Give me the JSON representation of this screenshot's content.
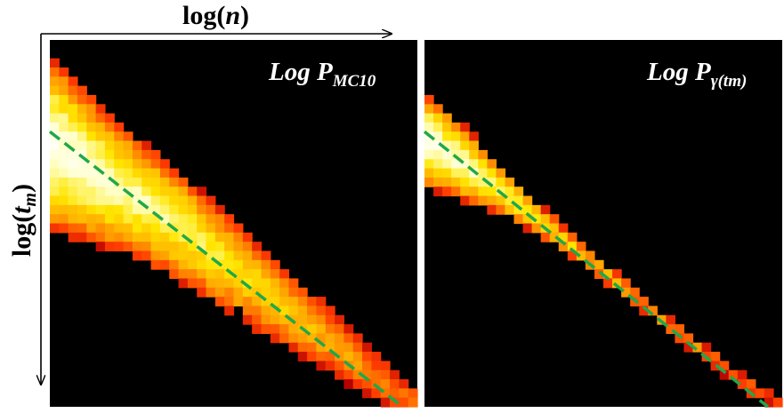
{
  "chart_data": {
    "type": "heatmap",
    "axes": {
      "x_label": "log(n)",
      "y_label": "log(t_m)",
      "x_label_parts": {
        "base": "log(",
        "var": "n",
        "close": ")"
      },
      "y_label_parts": {
        "base": "log(",
        "var": "t",
        "sub": "m",
        "close": ")"
      }
    },
    "grid": false,
    "colormap": [
      "#000000",
      "#b40000",
      "#ff3c00",
      "#ffa000",
      "#ffe600",
      "#ffffc8",
      "#ffffff"
    ],
    "panels": [
      {
        "label_main": "Log P",
        "label_sub": "MC10",
        "grid_size": 40,
        "fit_line": {
          "color": "#1fa84a",
          "style": "dashed",
          "from": [
            0.0,
            0.25
          ],
          "to": [
            0.96,
            1.0
          ]
        },
        "band": {
          "centers": [
            [
              0.0,
              0.28
            ],
            [
              0.15,
              0.38
            ],
            [
              0.3,
              0.47
            ],
            [
              0.45,
              0.58
            ],
            [
              0.6,
              0.7
            ],
            [
              0.75,
              0.81
            ],
            [
              0.9,
              0.93
            ],
            [
              1.0,
              0.99
            ]
          ],
          "half_widths": [
            [
              0.0,
              0.24
            ],
            [
              0.2,
              0.17
            ],
            [
              0.5,
              0.13
            ],
            [
              0.8,
              0.08
            ],
            [
              1.0,
              0.04
            ]
          ],
          "peak": [
            [
              0.0,
              0.95
            ],
            [
              0.4,
              0.75
            ],
            [
              0.75,
              0.55
            ],
            [
              1.0,
              0.38
            ]
          ]
        },
        "holes": [
          [
            8,
            26
          ],
          [
            12,
            30
          ],
          [
            16,
            33
          ],
          [
            19,
            31
          ],
          [
            20,
            29
          ],
          [
            14,
            27
          ]
        ]
      },
      {
        "label_main": "Log P",
        "label_sub": "γ(tm)",
        "grid_size": 40,
        "fit_line": {
          "color": "#1fa84a",
          "style": "dashed",
          "from": [
            0.0,
            0.25
          ],
          "to": [
            0.96,
            1.0
          ]
        },
        "band": {
          "centers": [
            [
              0.0,
              0.27
            ],
            [
              0.1,
              0.33
            ],
            [
              0.2,
              0.4
            ],
            [
              0.35,
              0.51
            ],
            [
              0.5,
              0.63
            ],
            [
              0.7,
              0.79
            ],
            [
              0.9,
              0.94
            ],
            [
              1.0,
              0.99
            ]
          ],
          "half_widths": [
            [
              0.0,
              0.13
            ],
            [
              0.12,
              0.1
            ],
            [
              0.25,
              0.055
            ],
            [
              0.4,
              0.03
            ],
            [
              0.6,
              0.022
            ],
            [
              1.0,
              0.018
            ]
          ],
          "peak": [
            [
              0.0,
              0.95
            ],
            [
              0.3,
              0.72
            ],
            [
              0.6,
              0.5
            ],
            [
              1.0,
              0.38
            ]
          ]
        },
        "holes": []
      }
    ]
  }
}
